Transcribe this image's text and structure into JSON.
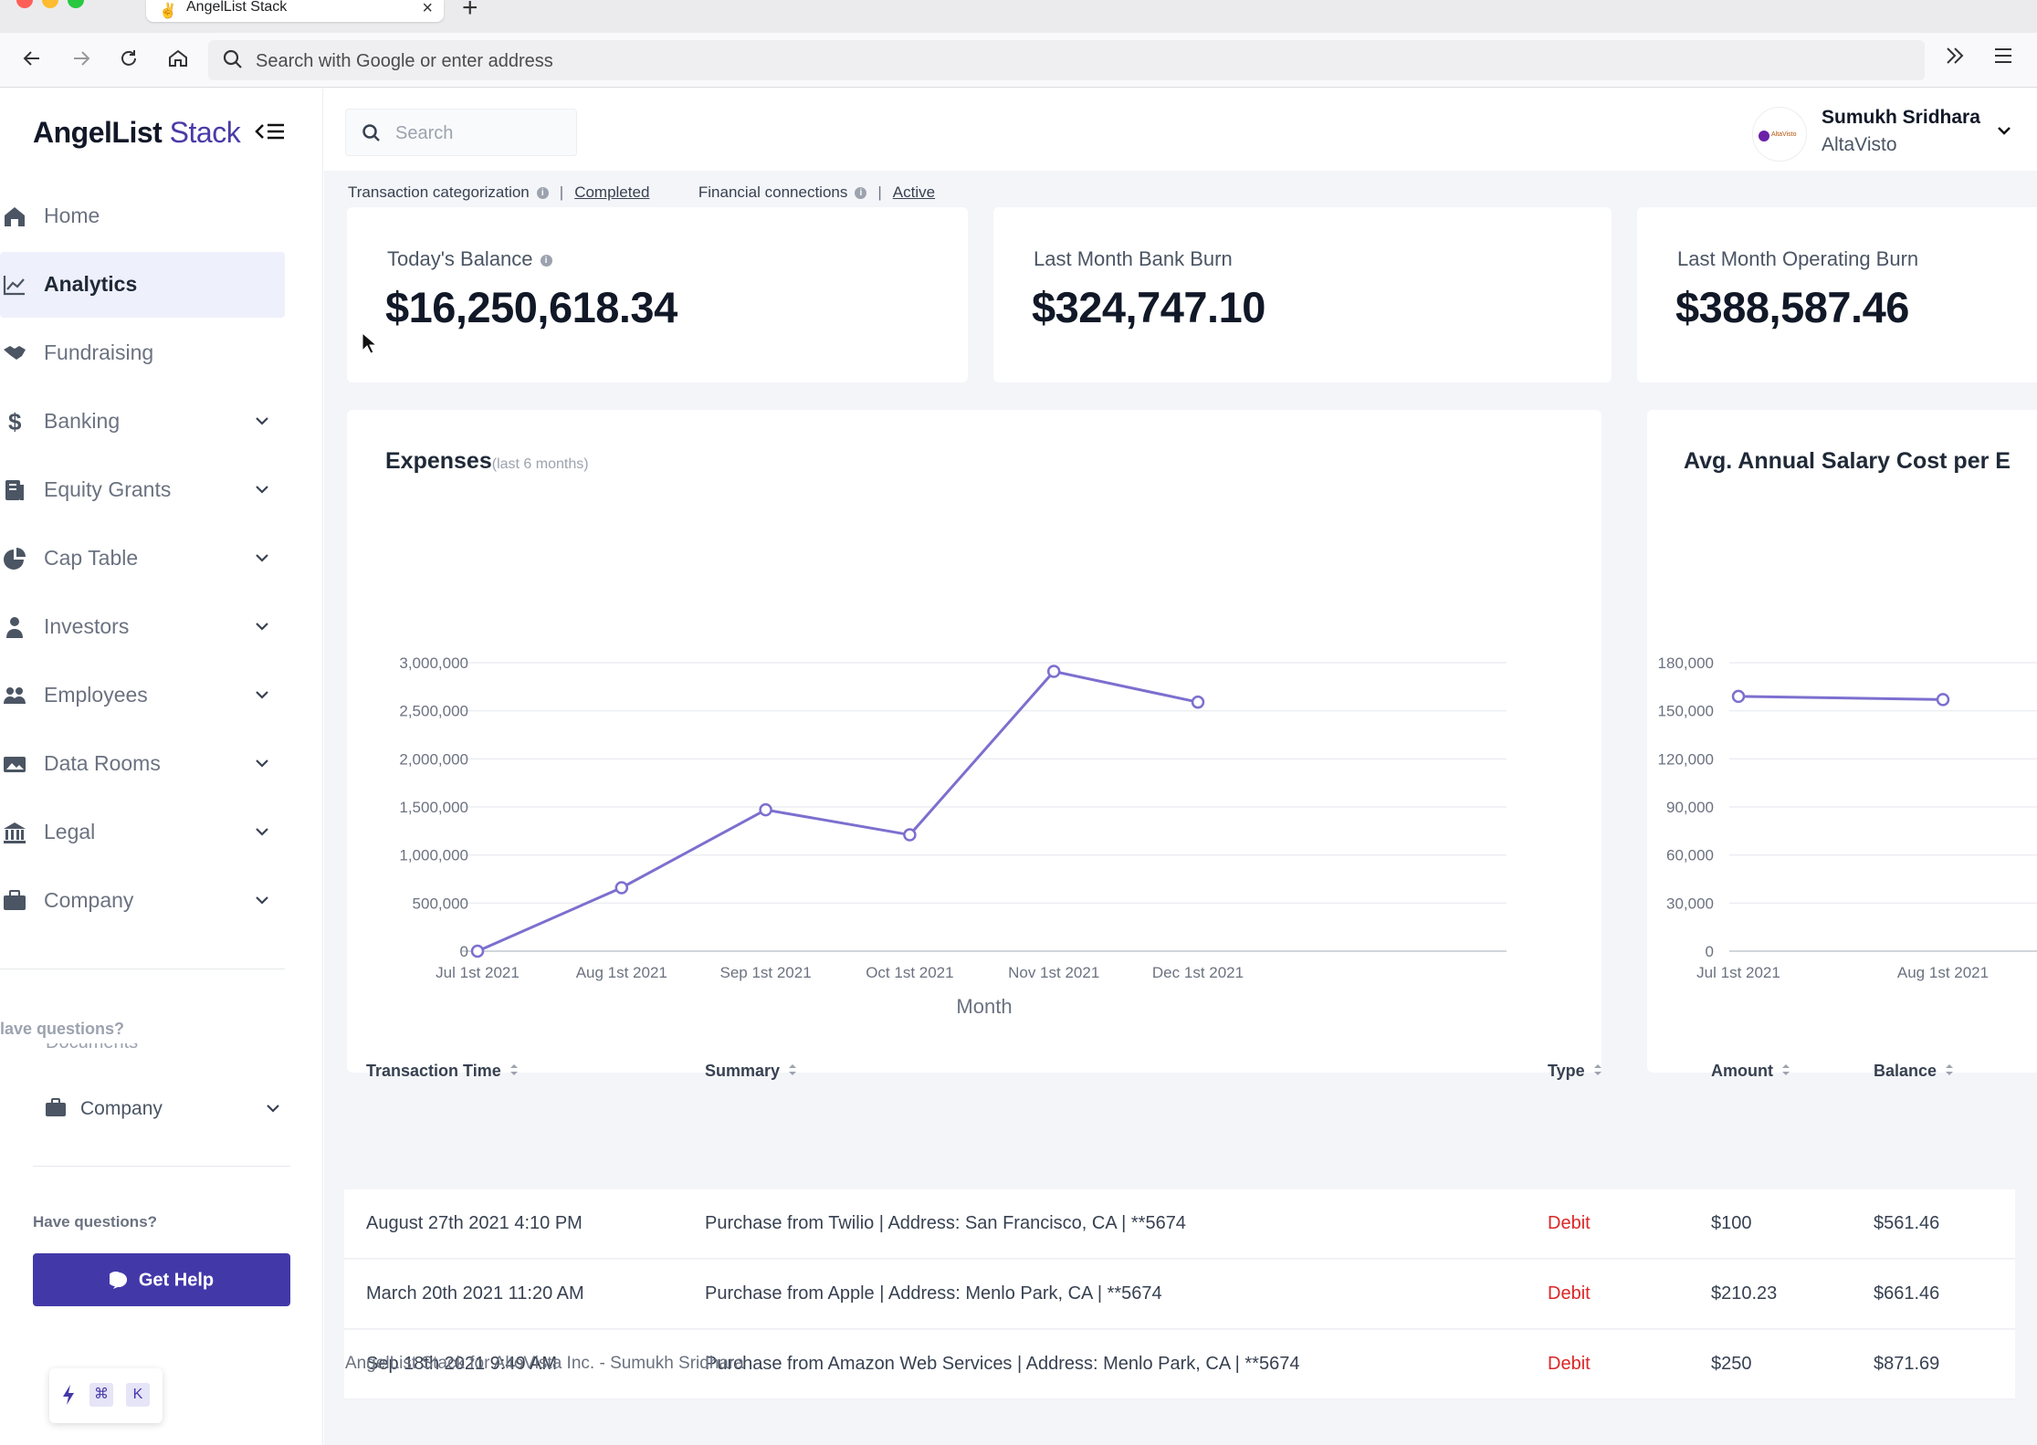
{
  "browser": {
    "tab_title": "AngelList Stack",
    "address_placeholder": "Search with Google or enter address",
    "icons": [
      "back-arrow-icon",
      "forward-arrow-icon",
      "reload-icon",
      "home-icon",
      "search-icon",
      "overflow-chevrons-icon",
      "hamburger-menu-icon",
      "close-icon",
      "plus-icon"
    ]
  },
  "sidebar": {
    "brand": "AngelList",
    "brand_product": "Stack",
    "items": [
      {
        "label": "Home",
        "icon": "home-icon",
        "active": false,
        "has_children": false
      },
      {
        "label": "Analytics",
        "icon": "chart-line-icon",
        "active": true,
        "has_children": false
      },
      {
        "label": "Fundraising",
        "icon": "handshake-icon",
        "active": false,
        "has_children": false
      },
      {
        "label": "Banking",
        "icon": "dollar-icon",
        "active": false,
        "has_children": true
      },
      {
        "label": "Equity Grants",
        "icon": "document-icon",
        "active": false,
        "has_children": true
      },
      {
        "label": "Cap Table",
        "icon": "pie-chart-icon",
        "active": false,
        "has_children": true
      },
      {
        "label": "Investors",
        "icon": "person-icon",
        "active": false,
        "has_children": true
      },
      {
        "label": "Employees",
        "icon": "people-icon",
        "active": false,
        "has_children": true
      },
      {
        "label": "Data Rooms",
        "icon": "image-folder-icon",
        "active": false,
        "has_children": true
      },
      {
        "label": "Legal",
        "icon": "bank-icon",
        "active": false,
        "has_children": true
      },
      {
        "label": "Company",
        "icon": "briefcase-icon",
        "active": false,
        "has_children": true
      }
    ],
    "ghost_questions": "lave questions?",
    "ghost_documents": "Documents",
    "company_label": "Company",
    "have_questions": "Have questions?",
    "get_help": "Get Help",
    "shortcut_keys": [
      "⌘",
      "K"
    ]
  },
  "header": {
    "search_placeholder": "Search",
    "user_name": "Sumukh Sridhara",
    "user_org": "AltaVisto",
    "org_logo_text": "AltaVisto"
  },
  "status": {
    "categorization_label": "Transaction categorization",
    "categorization_value": "Completed",
    "connections_label": "Financial connections",
    "connections_value": "Active"
  },
  "stats": [
    {
      "label": "Today's Balance",
      "value": "$16,250,618.34",
      "info": true
    },
    {
      "label": "Last Month Bank Burn",
      "value": "$324,747.10",
      "info": false
    },
    {
      "label": "Last Month Operating Burn",
      "value": "$388,587.46",
      "info": false
    }
  ],
  "charts": {
    "expenses_title": "Expenses",
    "expenses_subtitle": "(last 6 months)",
    "salary_title": "Avg. Annual Salary Cost per E"
  },
  "chart_data": [
    {
      "type": "line",
      "title": "Expenses",
      "subtitle": "(last 6 months)",
      "xlabel": "Month",
      "ylabel": "",
      "categories": [
        "Jul 1st 2021",
        "Aug 1st 2021",
        "Sep 1st 2021",
        "Oct 1st 2021",
        "Nov 1st 2021",
        "Dec 1st 2021"
      ],
      "values": [
        0,
        660000,
        1470000,
        1210000,
        2910000,
        2590000
      ],
      "yticks": [
        "0",
        "500,000",
        "1,000,000",
        "1,500,000",
        "2,000,000",
        "2,500,000",
        "3,000,000"
      ],
      "ylim": [
        0,
        3000000
      ],
      "grid": true,
      "color": "#7c6fcf"
    },
    {
      "type": "line",
      "title": "Avg. Annual Salary Cost per E",
      "categories": [
        "Jul 1st 2021",
        "Aug 1st 2021"
      ],
      "values": [
        159000,
        157000
      ],
      "yticks": [
        "0",
        "30,000",
        "60,000",
        "90,000",
        "120,000",
        "150,000",
        "180,000"
      ],
      "ylim": [
        0,
        180000
      ],
      "grid": true,
      "color": "#7c6fcf"
    }
  ],
  "table": {
    "columns": [
      "Transaction Time",
      "Summary",
      "Type",
      "Amount",
      "Balance"
    ],
    "rows": [
      {
        "time": "August 27th 2021 4:10 PM",
        "summary": "Purchase from Twilio | Address: San Francisco, CA | **5674",
        "type": "Debit",
        "amount": "$100",
        "balance": "$561.46"
      },
      {
        "time": "March 20th 2021 11:20 AM",
        "summary": "Purchase from Apple | Address: Menlo Park, CA | **5674",
        "type": "Debit",
        "amount": "$210.23",
        "balance": "$661.46"
      },
      {
        "time": "Sep 18th 2021 9:49 AM",
        "summary": "Purchase from Amazon Web Services | Address: Menlo Park, CA | **5674",
        "type": "Debit",
        "amount": "$250",
        "balance": "$871.69"
      }
    ]
  },
  "footer": "AngelList Stack for AltoVista Inc. - Sumukh Sridhara",
  "colors": {
    "accent": "#4338a8",
    "chart_line": "#7c6fcf",
    "debit": "#dc2626",
    "active_nav_bg": "#eef0fb"
  }
}
